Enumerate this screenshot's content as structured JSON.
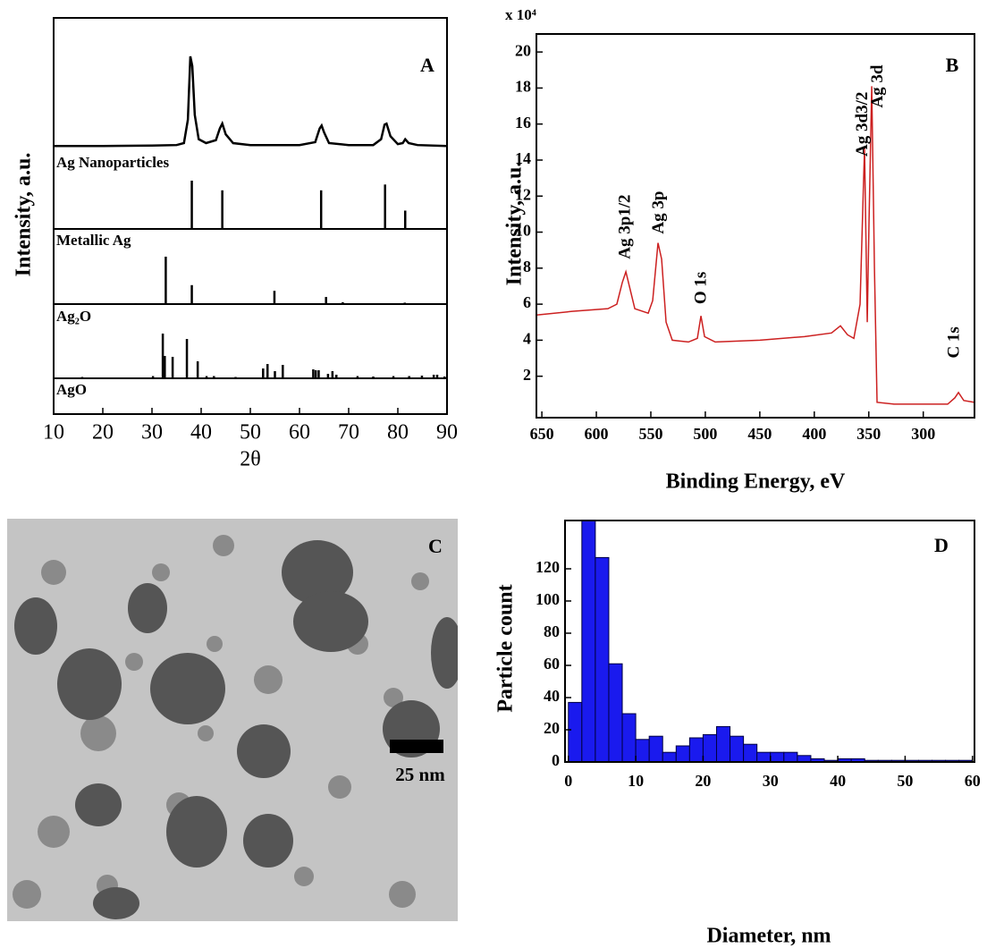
{
  "chart_data": [
    {
      "type": "xrd",
      "label": "A",
      "xlabel": "2θ",
      "ylabel": "Intensity, a.u.",
      "xlim": [
        10,
        90
      ],
      "xticks": [
        10,
        20,
        30,
        40,
        50,
        60,
        70,
        80,
        90
      ],
      "series": [
        {
          "name": "Ag Nanoparticles",
          "style": "curve",
          "color": "#000000",
          "x": [
            10,
            20,
            30,
            35,
            36.5,
            37.3,
            37.8,
            38.2,
            38.7,
            39.5,
            41,
            43,
            43.8,
            44.3,
            45,
            46.5,
            50,
            60,
            63.2,
            64.1,
            64.5,
            65,
            66,
            70,
            75,
            76.6,
            77.3,
            77.7,
            78.5,
            80,
            81,
            81.5,
            82.2,
            84,
            90
          ],
          "values": [
            8,
            8,
            8.5,
            9,
            11,
            35,
            100,
            90,
            40,
            15,
            11,
            14,
            26,
            31,
            20,
            11,
            9,
            9,
            12,
            26,
            29,
            22,
            11,
            9,
            9,
            15,
            30,
            31,
            18,
            10,
            11,
            15,
            11,
            9,
            8
          ]
        },
        {
          "name": "Metallic Ag",
          "style": "sticks",
          "color": "#000000",
          "x": [
            38.1,
            44.3,
            64.4,
            77.4,
            81.5
          ],
          "values": [
            100,
            80,
            80,
            92,
            38
          ]
        },
        {
          "name": "Ag₂O",
          "style": "sticks",
          "color": "#000000",
          "x": [
            26.7,
            32.8,
            38.1,
            54.9,
            65.4,
            68.8,
            81.4
          ],
          "values": [
            2,
            100,
            40,
            28,
            15,
            4,
            3
          ]
        },
        {
          "name": "AgO",
          "style": "sticks",
          "color": "#000000",
          "x": [
            15.8,
            30.2,
            32.2,
            32.6,
            34.2,
            37.1,
            39.3,
            41.1,
            42.6,
            47,
            52.6,
            53.5,
            55,
            56.6,
            62.8,
            63.3,
            63.9,
            65.8,
            66.7,
            67.5,
            71.8,
            75,
            79.1,
            82.3,
            84.9,
            87.3,
            88,
            89.5
          ],
          "values": [
            3,
            5,
            100,
            50,
            48,
            88,
            38,
            5,
            5,
            3,
            22,
            32,
            16,
            30,
            20,
            18,
            18,
            10,
            16,
            8,
            5,
            4,
            5,
            5,
            6,
            8,
            8,
            4
          ]
        }
      ]
    },
    {
      "type": "line",
      "label": "B",
      "multiplier": "x 10⁴",
      "xlabel": "Binding Energy, eV",
      "ylabel": "Intensity, a.u.",
      "xlim": [
        655,
        253
      ],
      "xticks": [
        650,
        600,
        550,
        500,
        450,
        400,
        350,
        300
      ],
      "ylim": [
        -0.3,
        21
      ],
      "yticks": [
        2,
        4,
        6,
        8,
        10,
        12,
        14,
        16,
        18,
        20
      ],
      "series": [
        {
          "color": "#cc2020",
          "x": [
            655,
            622.2,
            589.4,
            581.2,
            576.2,
            572.9,
            569.7,
            564.7,
            552.4,
            548.3,
            543.4,
            540.1,
            536,
            530.3,
            515.5,
            507.3,
            504,
            500.7,
            490.9,
            449.9,
            408.9,
            384.2,
            376,
            369.5,
            363.7,
            358,
            353.9,
            351.4,
            349.8,
            347.3,
            344.8,
            342.4,
            326.8,
            277.6,
            271,
            267.7,
            262.8,
            253
          ],
          "values": [
            5.4,
            5.6,
            5.75,
            6,
            7.2,
            7.8,
            7,
            5.75,
            5.5,
            6.2,
            9.4,
            8.5,
            5,
            4,
            3.9,
            4.1,
            5.35,
            4.2,
            3.9,
            4,
            4.2,
            4.4,
            4.8,
            4.3,
            4.1,
            6,
            14.7,
            5,
            10.5,
            18.1,
            8,
            0.55,
            0.45,
            0.45,
            0.8,
            1.1,
            0.65,
            0.55
          ]
        }
      ],
      "annotations": [
        {
          "text": "Ag 3p1/2",
          "x": 573,
          "y": 8.5
        },
        {
          "text": "Ag 3p",
          "x": 542,
          "y": 9.9
        },
        {
          "text": "O 1s",
          "x": 503,
          "y": 6.0
        },
        {
          "text": "Ag 3d3/2",
          "x": 355,
          "y": 14.2
        },
        {
          "text": "Ag 3d",
          "x": 341,
          "y": 16.9
        },
        {
          "text": "C 1s",
          "x": 271,
          "y": 3.0
        }
      ]
    },
    {
      "type": "histogram",
      "label": "D",
      "xlabel": "Diameter, nm",
      "ylabel": "Particle count",
      "color": "#1a1aee",
      "bins": [
        0,
        2,
        4,
        6,
        8,
        10,
        12,
        14,
        16,
        18,
        20,
        22,
        24,
        26,
        28,
        30,
        32,
        34,
        36,
        38,
        40,
        42,
        44,
        46,
        48,
        50,
        52,
        54,
        56,
        58,
        60
      ],
      "values": [
        37,
        150,
        127,
        61,
        30,
        14,
        16,
        6,
        10,
        15,
        17,
        22,
        16,
        11,
        6,
        6,
        6,
        4,
        2,
        1,
        2,
        2,
        1,
        1,
        1,
        1,
        1,
        1,
        1,
        1
      ],
      "xlim": [
        -0.5,
        60.3
      ],
      "xticks": [
        0,
        10,
        20,
        30,
        40,
        50,
        60
      ],
      "ylim": [
        0,
        150
      ],
      "yticks": [
        0,
        20,
        40,
        60,
        80,
        100,
        120
      ]
    }
  ],
  "image": {
    "label": "C",
    "scale_bar": "25 nm"
  }
}
